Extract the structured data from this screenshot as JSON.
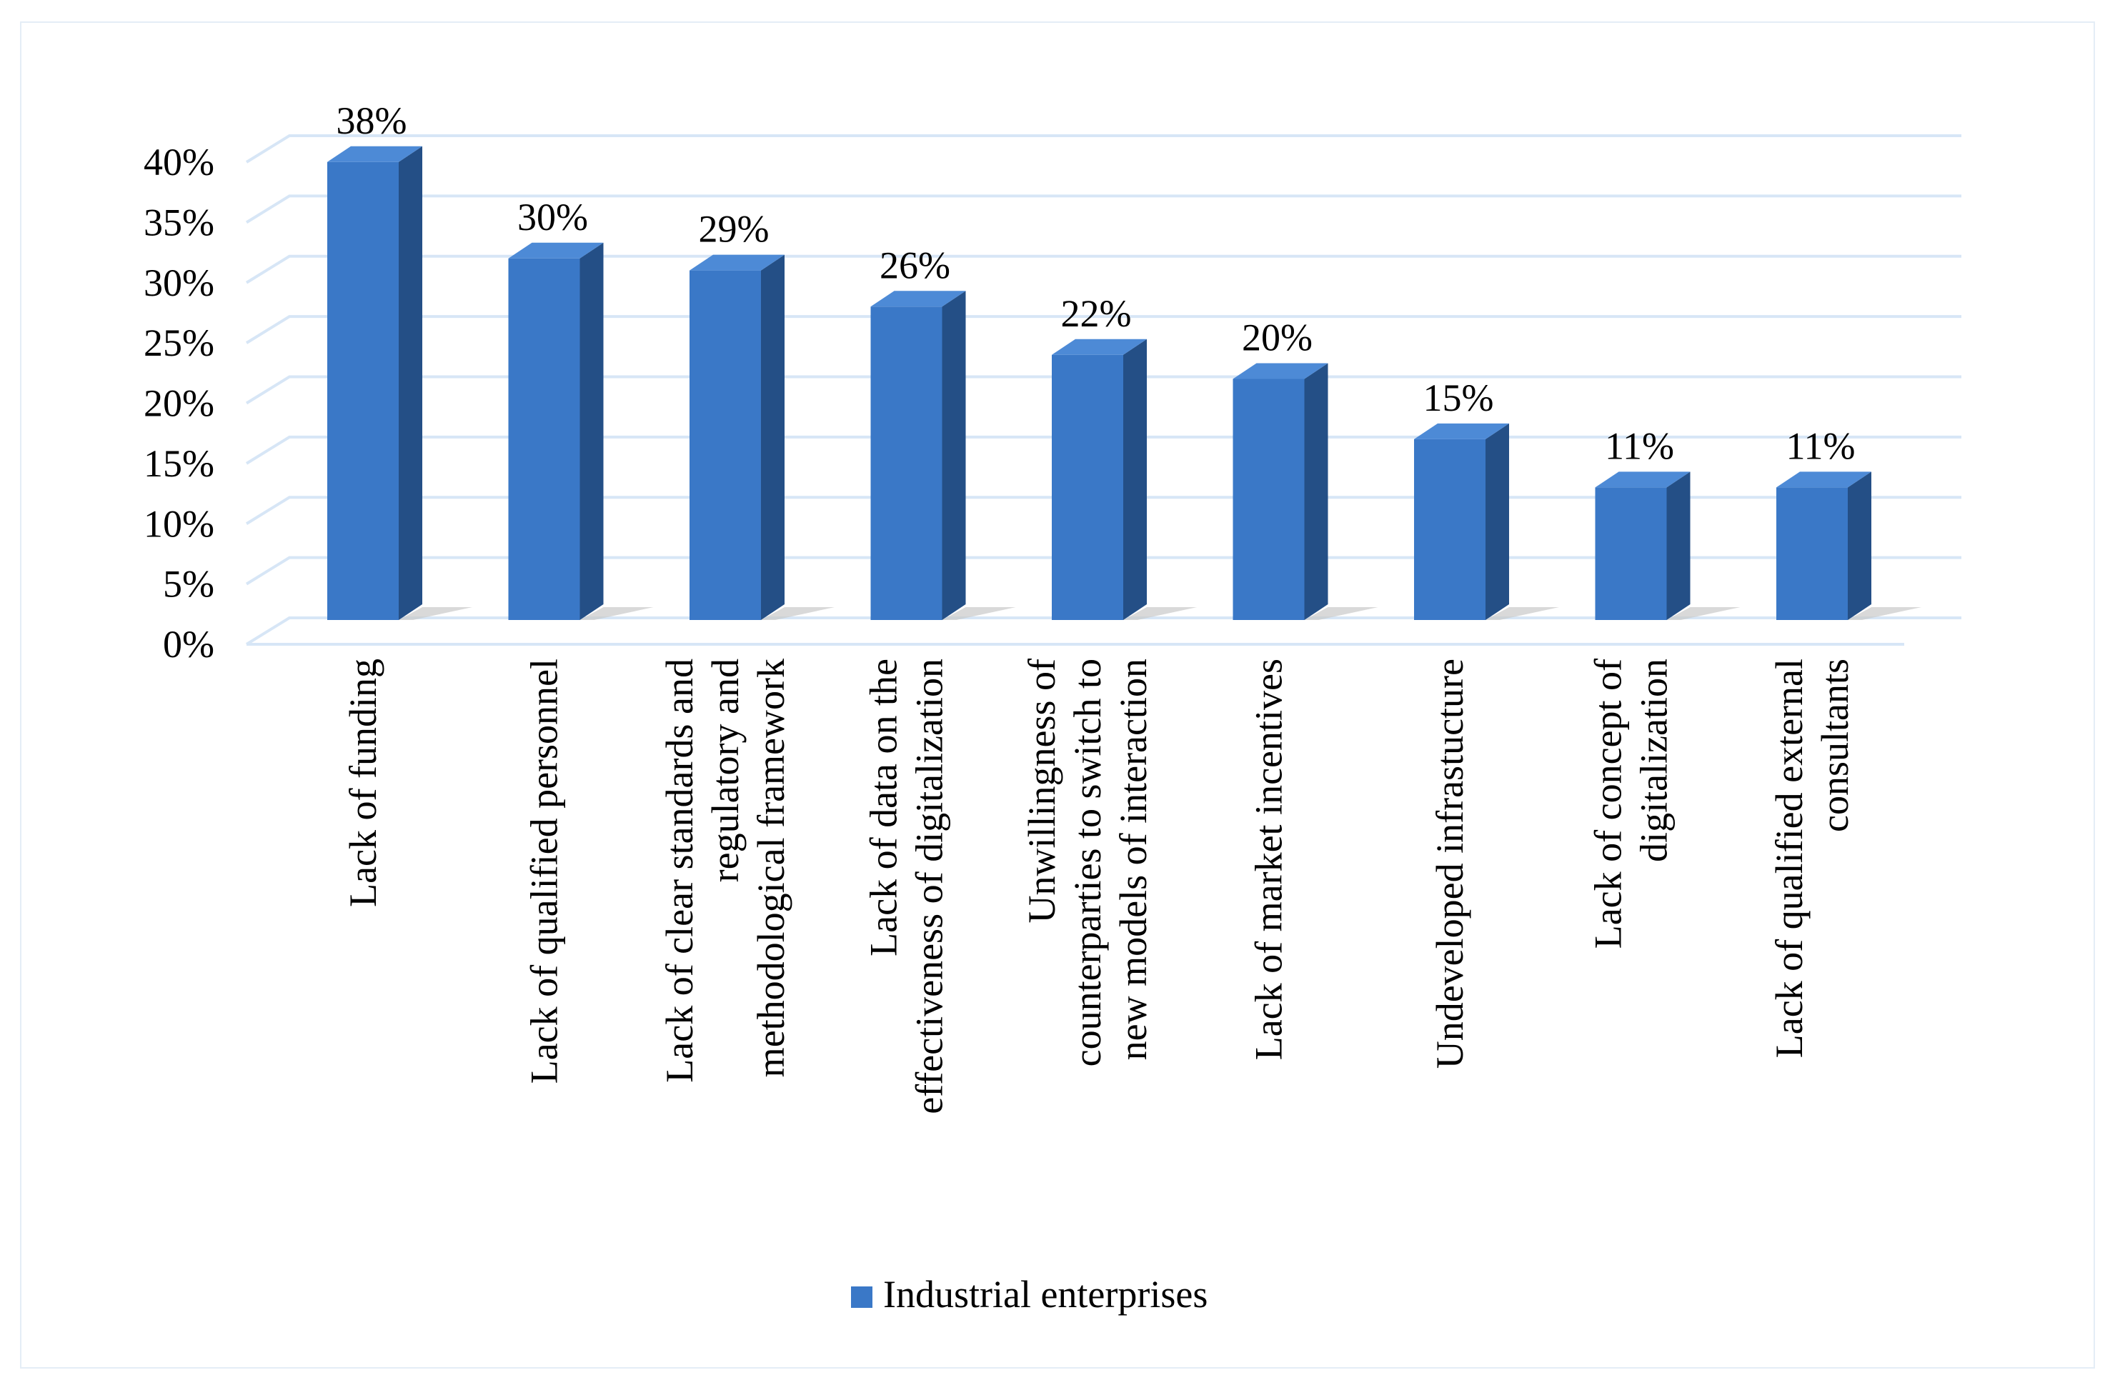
{
  "chart_data": {
    "type": "bar",
    "style": "3d-column",
    "categories": [
      [
        "Lack of funding"
      ],
      [
        "Lack of qualified personnel"
      ],
      [
        "Lack of clear standards and",
        "regulatory and",
        "methodological framework"
      ],
      [
        "Lack of data on the",
        "effectiveness of digitalization"
      ],
      [
        "Unwillingness of",
        "counterparties to switch to",
        "new models of interaction"
      ],
      [
        "Lack of market incentives"
      ],
      [
        "Undeveloped infrastucture"
      ],
      [
        "Lack of concept of",
        "digitalization"
      ],
      [
        "Lack of qualified external",
        "consultants"
      ]
    ],
    "series": [
      {
        "name": "Industrial enterprises",
        "values": [
          38,
          30,
          29,
          26,
          22,
          20,
          15,
          11,
          11
        ]
      }
    ],
    "data_labels": [
      "38%",
      "30%",
      "29%",
      "26%",
      "22%",
      "20%",
      "15%",
      "11%",
      "11%"
    ],
    "yticks": [
      "0%",
      "5%",
      "10%",
      "15%",
      "20%",
      "25%",
      "30%",
      "35%",
      "40%"
    ],
    "ylim": [
      0,
      40
    ],
    "ytick_step": 5,
    "grid": true,
    "legend": "bottom-center",
    "colors": {
      "bar_front": "#3a78c7",
      "bar_side": "#244f86",
      "bar_top": "#4d8ad6",
      "grid": "#d7e6f6",
      "shadow": "#c9c9c9"
    }
  }
}
